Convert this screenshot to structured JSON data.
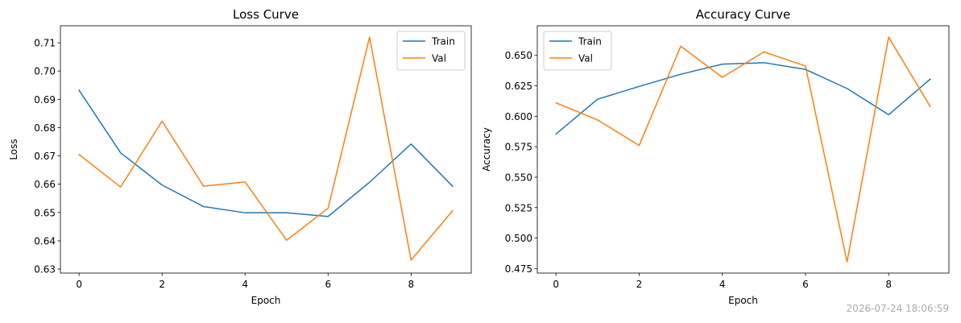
{
  "colors": {
    "train": "#1f77b4",
    "val": "#ff7f0e",
    "frame": "#000000",
    "timestamp": "#aaaaaa"
  },
  "timestamp": "2026-07-24 18:06:59",
  "chart_data": [
    {
      "type": "line",
      "title": "Loss Curve",
      "xlabel": "Epoch",
      "ylabel": "Loss",
      "x": [
        0,
        1,
        2,
        3,
        4,
        5,
        6,
        7,
        8,
        9
      ],
      "xlim": [
        -0.45,
        9.45
      ],
      "ylim": [
        0.6286,
        0.716
      ],
      "xticks": [
        0,
        2,
        4,
        6,
        8
      ],
      "yticks": [
        0.63,
        0.64,
        0.65,
        0.66,
        0.67,
        0.68,
        0.69,
        0.7,
        0.71
      ],
      "ytick_decimals": 2,
      "legend": "top-right",
      "grid": false,
      "series": [
        {
          "name": "Train",
          "color": "#1f77b4",
          "values": [
            0.6932,
            0.6711,
            0.6597,
            0.6521,
            0.6499,
            0.6499,
            0.6486,
            0.6607,
            0.6742,
            0.6593
          ]
        },
        {
          "name": "Val",
          "color": "#ff7f0e",
          "values": [
            0.6705,
            0.659,
            0.6823,
            0.6593,
            0.6608,
            0.6402,
            0.6515,
            0.712,
            0.6332,
            0.6506
          ]
        }
      ]
    },
    {
      "type": "line",
      "title": "Accuracy Curve",
      "xlabel": "Epoch",
      "ylabel": "Accuracy",
      "x": [
        0,
        1,
        2,
        3,
        4,
        5,
        6,
        7,
        8,
        9
      ],
      "xlim": [
        -0.45,
        9.45
      ],
      "ylim": [
        0.4713,
        0.6743
      ],
      "xticks": [
        0,
        2,
        4,
        6,
        8
      ],
      "yticks": [
        0.475,
        0.5,
        0.525,
        0.55,
        0.575,
        0.6,
        0.625,
        0.65
      ],
      "ytick_decimals": 3,
      "legend": "top-left",
      "grid": false,
      "series": [
        {
          "name": "Train",
          "color": "#1f77b4",
          "values": [
            0.5855,
            0.614,
            0.6245,
            0.6345,
            0.6428,
            0.644,
            0.6385,
            0.6228,
            0.6013,
            0.6305
          ]
        },
        {
          "name": "Val",
          "color": "#ff7f0e",
          "values": [
            0.611,
            0.597,
            0.576,
            0.6575,
            0.632,
            0.6528,
            0.6413,
            0.4805,
            0.665,
            0.608
          ]
        }
      ]
    }
  ]
}
